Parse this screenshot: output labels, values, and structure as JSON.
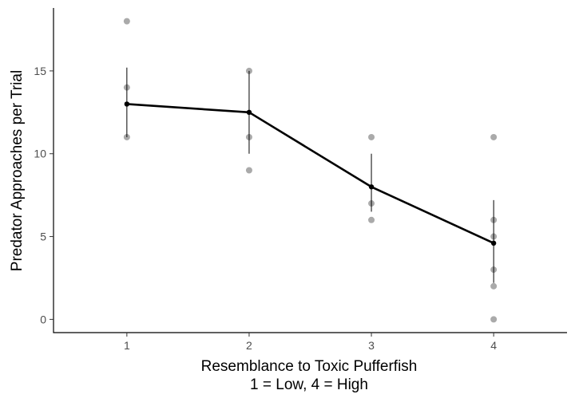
{
  "chart_data": {
    "type": "scatter",
    "xlabel_line1": "Resemblance to Toxic Pufferfish",
    "xlabel_line2": "1 = Low, 4 = High",
    "ylabel": "Predator Approaches per Trial",
    "x_ticks": [
      1,
      2,
      3,
      4
    ],
    "y_ticks": [
      0,
      5,
      10,
      15
    ],
    "xlim": [
      0.4,
      4.6
    ],
    "ylim": [
      -0.8,
      18.8
    ],
    "grid": false,
    "raw_points": [
      {
        "x": 1,
        "y": 18
      },
      {
        "x": 1,
        "y": 14
      },
      {
        "x": 1,
        "y": 11
      },
      {
        "x": 2,
        "y": 15
      },
      {
        "x": 2,
        "y": 11
      },
      {
        "x": 2,
        "y": 9
      },
      {
        "x": 3,
        "y": 11
      },
      {
        "x": 3,
        "y": 7
      },
      {
        "x": 3,
        "y": 6
      },
      {
        "x": 4,
        "y": 11
      },
      {
        "x": 4,
        "y": 6
      },
      {
        "x": 4,
        "y": 5
      },
      {
        "x": 4,
        "y": 3
      },
      {
        "x": 4,
        "y": 2
      },
      {
        "x": 4,
        "y": 0
      }
    ],
    "means": [
      {
        "x": 1,
        "y": 13.0,
        "lower": 11.0,
        "upper": 15.2
      },
      {
        "x": 2,
        "y": 12.5,
        "lower": 10.0,
        "upper": 15.0
      },
      {
        "x": 3,
        "y": 8.0,
        "lower": 6.5,
        "upper": 10.0
      },
      {
        "x": 4,
        "y": 4.6,
        "lower": 2.2,
        "upper": 7.2
      }
    ],
    "colors": {
      "raw_points": "#aaaaaa",
      "mean_line": "#000000",
      "axis": "#000000",
      "tick_label": "#4d4d4d"
    }
  }
}
